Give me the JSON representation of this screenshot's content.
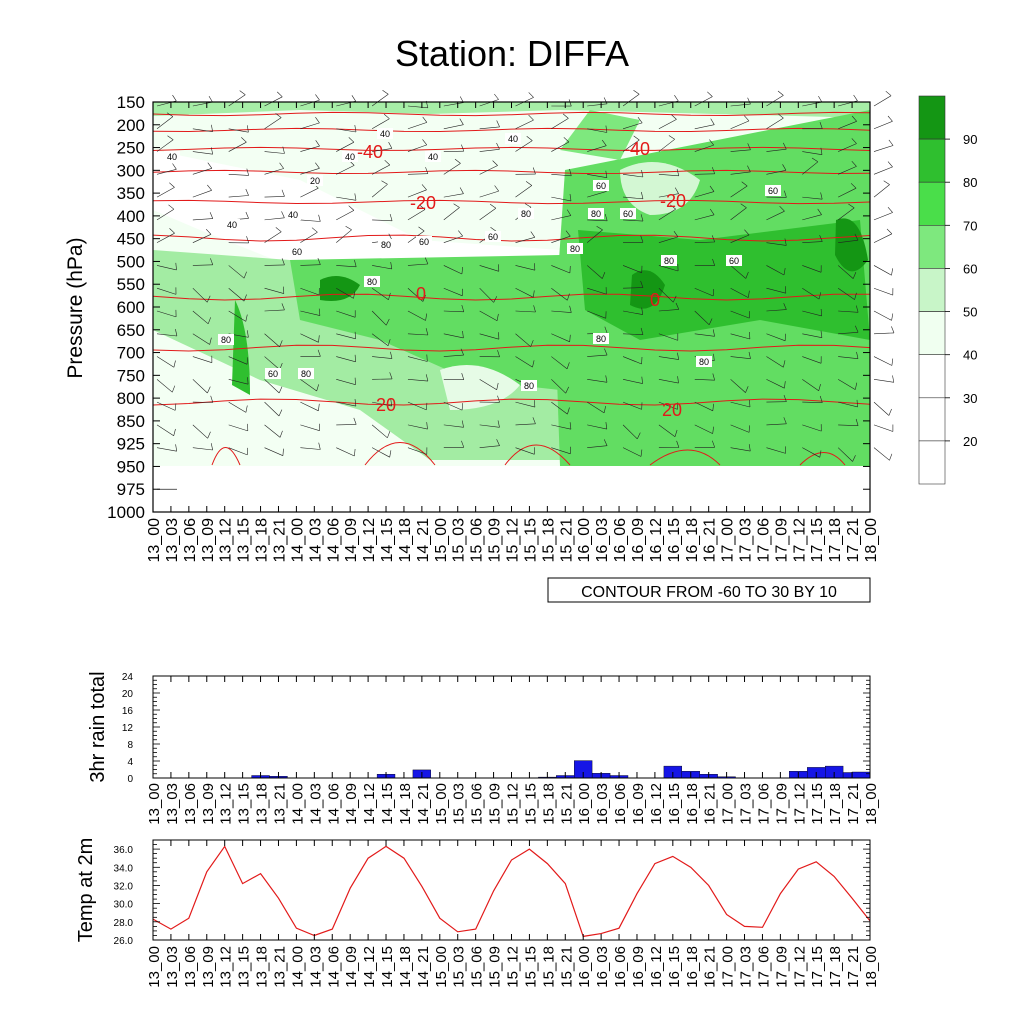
{
  "title": "Station: DIFFA",
  "time_labels": [
    "13_00",
    "13_03",
    "13_06",
    "13_09",
    "13_12",
    "13_15",
    "13_18",
    "13_21",
    "14_00",
    "14_03",
    "14_06",
    "14_09",
    "14_12",
    "14_15",
    "14_18",
    "14_21",
    "15_00",
    "15_03",
    "15_06",
    "15_09",
    "15_12",
    "15_15",
    "15_18",
    "15_21",
    "16_00",
    "16_03",
    "16_06",
    "16_09",
    "16_12",
    "16_15",
    "16_18",
    "16_21",
    "17_00",
    "17_03",
    "17_06",
    "17_09",
    "17_12",
    "17_15",
    "17_18",
    "17_21",
    "18_00"
  ],
  "chart_data": [
    {
      "type": "heatmap",
      "name": "humidity-cross-section",
      "ylabel": "Pressure (hPa)",
      "pressure_levels": [
        150,
        200,
        250,
        300,
        350,
        400,
        450,
        500,
        550,
        600,
        650,
        700,
        750,
        800,
        850,
        925,
        950,
        975,
        1000
      ],
      "note": "CONTOUR FROM -60 TO 30 BY 10",
      "shading_levels": [
        20,
        30,
        40,
        50,
        60,
        70,
        80,
        90
      ],
      "shading_colors": [
        "#ffffff",
        "#ffffff",
        "#ffffff",
        "#f0fff0",
        "#c8f5c8",
        "#7ee87e",
        "#4ade4a",
        "#2fbf2f",
        "#149614"
      ],
      "temperature_contour_labels": [
        "-40",
        "-40",
        "-20",
        "-20",
        "0",
        "0",
        "20",
        "20"
      ],
      "humidity_contour_labels": [
        "40",
        "40",
        "40",
        "40",
        "20",
        "40",
        "40",
        "40",
        "60",
        "60",
        "60",
        "60",
        "60",
        "80",
        "80",
        "80",
        "80",
        "80",
        "80",
        "60",
        "60",
        "80",
        "60",
        "80",
        "80",
        "80",
        "80"
      ]
    },
    {
      "type": "bar",
      "name": "rain",
      "ylabel": "3hr rain total",
      "ylim": [
        0,
        24
      ],
      "yticks": [
        0,
        4,
        8,
        12,
        16,
        20,
        24
      ],
      "values": [
        0,
        0,
        0,
        0,
        0,
        0,
        0.6,
        0.4,
        0,
        0,
        0,
        0,
        0,
        0.9,
        0,
        1.9,
        0,
        0,
        0,
        0,
        0,
        0,
        0.2,
        0.6,
        4.1,
        1.1,
        0.6,
        0,
        0,
        2.8,
        1.6,
        0.9,
        0.3,
        0,
        0,
        0,
        1.6,
        2.5,
        2.8,
        1.3,
        1.4
      ]
    },
    {
      "type": "line",
      "name": "temperature",
      "ylabel": "Temp at 2m",
      "ylim": [
        26,
        37
      ],
      "yticks": [
        "26.0",
        "28.0",
        "30.0",
        "32.0",
        "34.0",
        "36.0"
      ],
      "values": [
        28.3,
        27.2,
        28.4,
        33.5,
        36.3,
        32.2,
        33.3,
        30.6,
        27.3,
        26.5,
        27.2,
        31.7,
        35.0,
        36.3,
        35.0,
        31.9,
        28.4,
        26.9,
        27.2,
        31.4,
        34.8,
        36.0,
        34.4,
        32.2,
        26.4,
        26.7,
        27.3,
        31.1,
        34.4,
        35.2,
        34.0,
        32.0,
        28.8,
        27.5,
        27.4,
        31.1,
        33.8,
        34.6,
        33.0,
        30.6,
        28.1
      ]
    }
  ],
  "colors": {
    "temp_contour": "#e21a1a",
    "rain_bar": "#1515e6",
    "temp_line": "#e21a1a",
    "axis": "#000000"
  }
}
